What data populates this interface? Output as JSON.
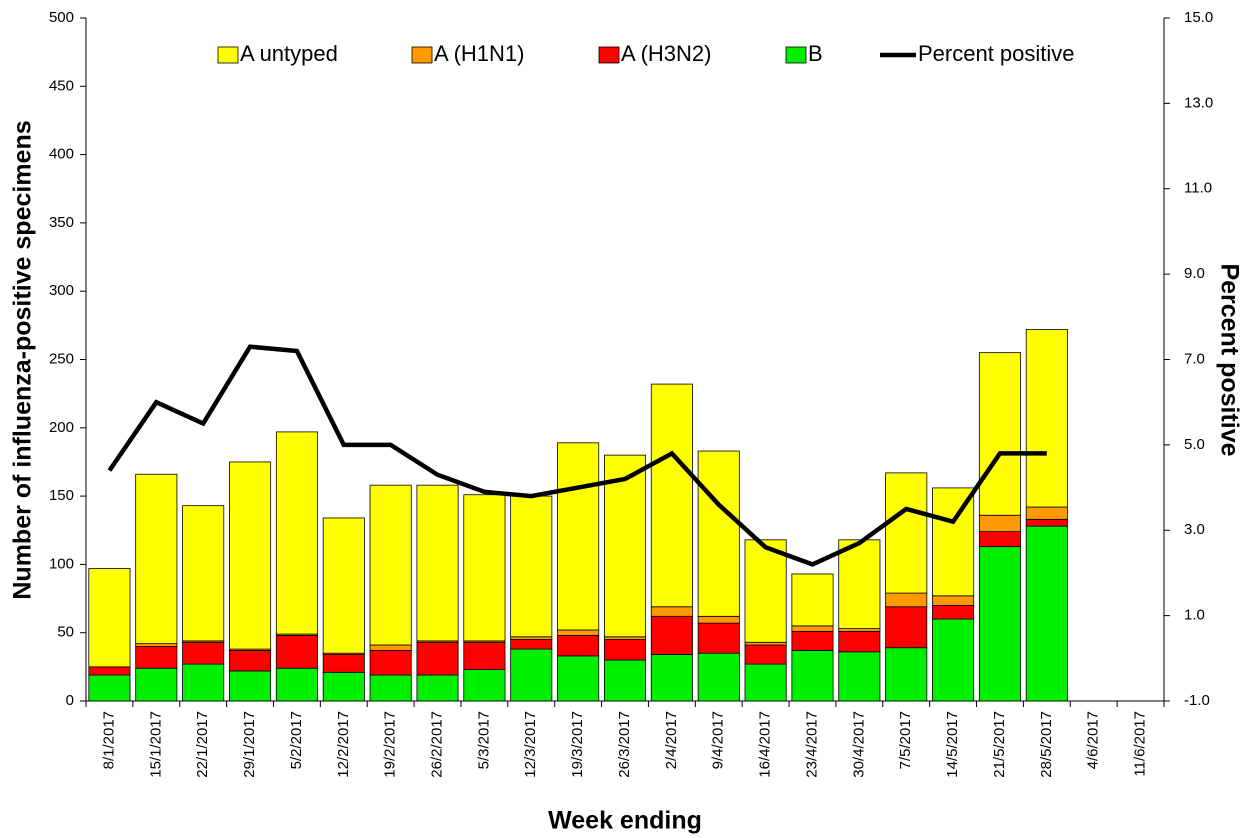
{
  "chart_data": {
    "type": "bar",
    "stacked": true,
    "x_label": "Week ending",
    "y_label": "Number of influenza-positive specimens",
    "y2_label": "Percent positive",
    "categories": [
      "8/1/2017",
      "15/1/2017",
      "22/1/2017",
      "29/1/2017",
      "5/2/2017",
      "12/2/2017",
      "19/2/2017",
      "26/2/2017",
      "5/3/2017",
      "12/3/2017",
      "19/3/2017",
      "26/3/2017",
      "2/4/2017",
      "9/4/2017",
      "16/4/2017",
      "23/4/2017",
      "30/4/2017",
      "7/5/2017",
      "14/5/2017",
      "21/5/2017",
      "28/5/2017",
      "4/6/2017",
      "11/6/2017"
    ],
    "series": [
      {
        "name": "A untyped",
        "color": "#ffff00",
        "values": [
          72,
          124,
          99,
          137,
          148,
          99,
          117,
          114,
          107,
          103,
          137,
          133,
          163,
          121,
          75,
          38,
          65,
          88,
          79,
          119,
          130,
          null,
          null
        ]
      },
      {
        "name": "A (H1N1)",
        "color": "#ff9900",
        "values": [
          0,
          2,
          1,
          1,
          1,
          1,
          4,
          1,
          1,
          2,
          4,
          2,
          7,
          5,
          2,
          4,
          2,
          10,
          7,
          12,
          9,
          null,
          null
        ]
      },
      {
        "name": "A (H3N2)",
        "color": "#ff0000",
        "values": [
          6,
          16,
          16,
          15,
          24,
          13,
          18,
          24,
          20,
          7,
          15,
          15,
          28,
          22,
          14,
          14,
          15,
          30,
          10,
          11,
          5,
          null,
          null
        ]
      },
      {
        "name": "B",
        "color": "#00ee00",
        "values": [
          19,
          24,
          27,
          22,
          24,
          21,
          19,
          19,
          23,
          38,
          33,
          30,
          34,
          35,
          27,
          37,
          36,
          39,
          60,
          113,
          128,
          null,
          null
        ]
      },
      {
        "name": "Percent positive",
        "color": "#000000",
        "type": "line",
        "axis": "y2",
        "values": [
          4.4,
          6.0,
          5.5,
          7.3,
          7.2,
          5.0,
          5.0,
          4.3,
          3.9,
          3.8,
          4.0,
          4.2,
          4.8,
          3.6,
          2.6,
          2.2,
          2.7,
          3.5,
          3.2,
          4.8,
          4.8,
          null,
          null
        ]
      }
    ],
    "ylim": [
      0,
      500
    ],
    "yticks": [
      0,
      50,
      100,
      150,
      200,
      250,
      300,
      350,
      400,
      450,
      500
    ],
    "y2lim": [
      -1,
      15
    ],
    "y2ticks": [
      {
        "value": -1,
        "label": "-1.0"
      },
      {
        "value": 1,
        "label": "1.0"
      },
      {
        "value": 3,
        "label": "3.0"
      },
      {
        "value": 5,
        "label": "5.0"
      },
      {
        "value": 7,
        "label": "7.0"
      },
      {
        "value": 9,
        "label": "9.0"
      },
      {
        "value": 11,
        "label": "11.0"
      },
      {
        "value": 13,
        "label": "13.0"
      },
      {
        "value": 15,
        "label": "15.0"
      }
    ],
    "legend": "top"
  }
}
